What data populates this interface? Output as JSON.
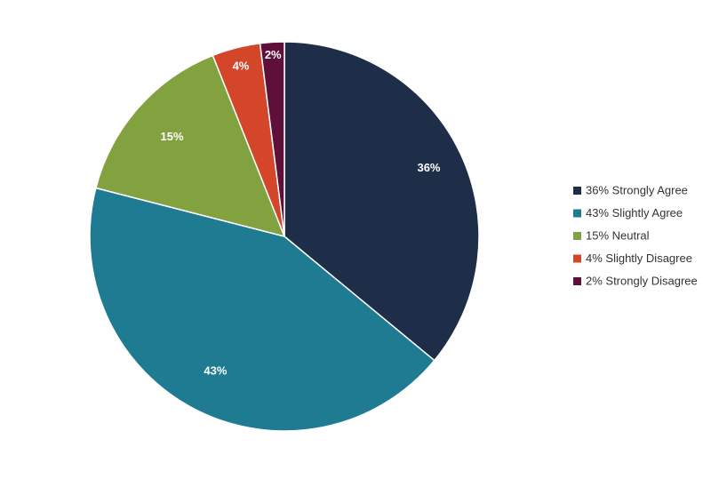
{
  "chart_data": {
    "type": "pie",
    "title": "",
    "start": "top",
    "direction": "clockwise",
    "slices": [
      {
        "label": "36% Strongly Agree",
        "value": 36,
        "data_label": "36%",
        "color": "#1e2e48"
      },
      {
        "label": "43% Slightly Agree",
        "value": 43,
        "data_label": "43%",
        "color": "#1e7b91"
      },
      {
        "label": "15% Neutral",
        "value": 15,
        "data_label": "15%",
        "color": "#82a23f"
      },
      {
        "label": "4% Slightly Disagree",
        "value": 4,
        "data_label": "4%",
        "color": "#d4462a"
      },
      {
        "label": "2% Strongly Disagree",
        "value": 2,
        "data_label": "2%",
        "color": "#5e0f3a"
      }
    ],
    "legend_position": "right"
  }
}
